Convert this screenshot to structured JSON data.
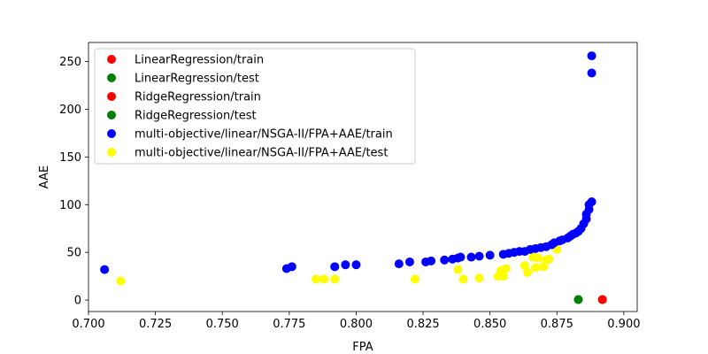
{
  "chart_data": {
    "type": "scatter",
    "title": "",
    "xlabel": "FPA",
    "ylabel": "AAE",
    "xlim": [
      0.7,
      0.905
    ],
    "ylim": [
      -12,
      270
    ],
    "xticks": [
      0.7,
      0.725,
      0.75,
      0.775,
      0.8,
      0.825,
      0.85,
      0.875,
      0.9
    ],
    "xtick_labels": [
      "0.700",
      "0.725",
      "0.750",
      "0.775",
      "0.800",
      "0.825",
      "0.850",
      "0.875",
      "0.900"
    ],
    "yticks": [
      0,
      50,
      100,
      150,
      200,
      250
    ],
    "ytick_labels": [
      "0",
      "50",
      "100",
      "150",
      "200",
      "250"
    ],
    "grid": false,
    "legend_position": "top-left",
    "series": [
      {
        "name": "LinearRegression/train",
        "color": "#ff0000",
        "points": [
          [
            0.892,
            0.5
          ]
        ]
      },
      {
        "name": "LinearRegression/test",
        "color": "#008000",
        "points": [
          [
            0.883,
            0.5
          ]
        ]
      },
      {
        "name": "RidgeRegression/train",
        "color": "#ff0000",
        "points": [
          [
            0.892,
            0.5
          ]
        ]
      },
      {
        "name": "RidgeRegression/test",
        "color": "#008000",
        "points": [
          [
            0.883,
            0.5
          ]
        ]
      },
      {
        "name": "multi-objective/linear/NSGA-II/FPA+AAE/train",
        "color": "#0000ff",
        "points": [
          [
            0.706,
            32
          ],
          [
            0.774,
            33
          ],
          [
            0.776,
            35
          ],
          [
            0.792,
            35
          ],
          [
            0.796,
            37
          ],
          [
            0.8,
            37
          ],
          [
            0.816,
            38
          ],
          [
            0.82,
            40
          ],
          [
            0.826,
            40
          ],
          [
            0.828,
            41
          ],
          [
            0.833,
            42
          ],
          [
            0.836,
            43
          ],
          [
            0.838,
            44
          ],
          [
            0.839,
            45
          ],
          [
            0.843,
            45
          ],
          [
            0.846,
            46
          ],
          [
            0.85,
            47
          ],
          [
            0.855,
            48
          ],
          [
            0.857,
            49
          ],
          [
            0.859,
            50
          ],
          [
            0.861,
            51
          ],
          [
            0.863,
            51
          ],
          [
            0.865,
            53
          ],
          [
            0.867,
            54
          ],
          [
            0.869,
            55
          ],
          [
            0.871,
            56
          ],
          [
            0.873,
            58
          ],
          [
            0.874,
            60
          ],
          [
            0.876,
            62
          ],
          [
            0.877,
            63
          ],
          [
            0.879,
            65
          ],
          [
            0.88,
            67
          ],
          [
            0.881,
            69
          ],
          [
            0.882,
            70
          ],
          [
            0.883,
            72
          ],
          [
            0.884,
            75
          ],
          [
            0.885,
            80
          ],
          [
            0.886,
            85
          ],
          [
            0.886,
            90
          ],
          [
            0.887,
            95
          ],
          [
            0.887,
            100
          ],
          [
            0.888,
            103
          ],
          [
            0.888,
            238
          ],
          [
            0.888,
            256
          ]
        ]
      },
      {
        "name": "multi-objective/linear/NSGA-II/FPA+AAE/test",
        "color": "#ffff00",
        "points": [
          [
            0.712,
            20
          ],
          [
            0.785,
            22
          ],
          [
            0.788,
            22
          ],
          [
            0.792,
            22
          ],
          [
            0.822,
            22
          ],
          [
            0.838,
            32
          ],
          [
            0.84,
            22
          ],
          [
            0.846,
            23
          ],
          [
            0.853,
            25
          ],
          [
            0.854,
            26
          ],
          [
            0.855,
            25
          ],
          [
            0.854,
            31
          ],
          [
            0.856,
            33
          ],
          [
            0.863,
            36
          ],
          [
            0.864,
            29
          ],
          [
            0.866,
            45
          ],
          [
            0.867,
            34
          ],
          [
            0.868,
            44
          ],
          [
            0.87,
            35
          ],
          [
            0.871,
            42
          ],
          [
            0.872,
            43
          ],
          [
            0.875,
            53
          ]
        ]
      }
    ]
  }
}
